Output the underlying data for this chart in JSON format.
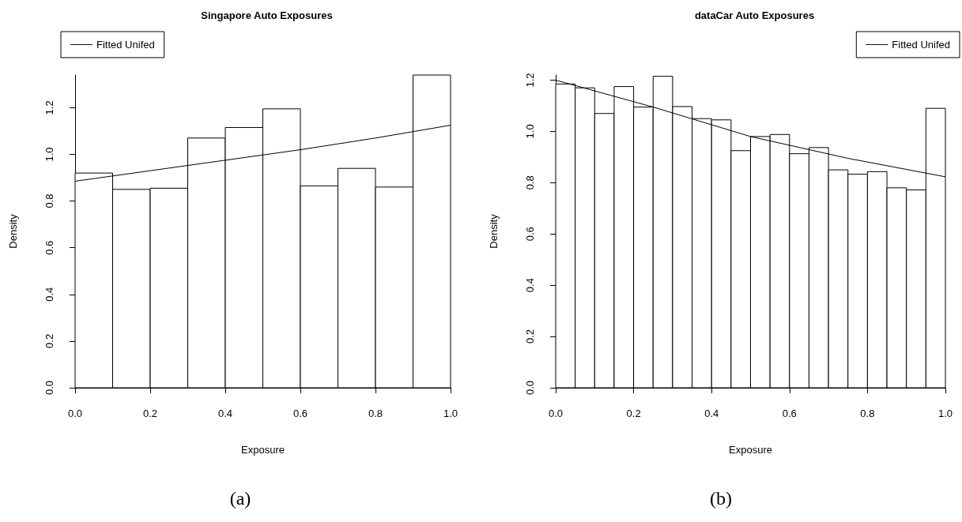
{
  "chart_data": [
    {
      "type": "histogram",
      "title": "Singapore Auto Exposures",
      "xlabel": "Exposure",
      "ylabel": "Density",
      "bins": [
        0,
        0.1,
        0.2,
        0.3,
        0.4,
        0.5,
        0.6,
        0.7,
        0.8,
        0.9,
        1.0
      ],
      "values": [
        0.92,
        0.85,
        0.855,
        1.07,
        1.115,
        1.195,
        0.865,
        0.94,
        0.86,
        1.34
      ],
      "color": "#ffffff",
      "series": [
        {
          "type": "line",
          "name": "Fitted Unifed",
          "color": "#000000",
          "x": [
            0,
            0.2,
            0.4,
            0.6,
            0.8,
            1.0
          ],
          "values": [
            0.885,
            0.93,
            0.975,
            1.02,
            1.07,
            1.125
          ]
        }
      ],
      "xlim": [
        0,
        1
      ],
      "xticks": [
        {
          "value": 0,
          "label": "0.0"
        },
        {
          "value": 0.2,
          "label": "0.2"
        },
        {
          "value": 0.4,
          "label": "0.4"
        },
        {
          "value": 0.6,
          "label": "0.6"
        },
        {
          "value": 0.8,
          "label": "0.8"
        },
        {
          "value": 1,
          "label": "1.0"
        }
      ],
      "ylim": [
        0,
        1.34
      ],
      "yticks": [
        {
          "value": 0,
          "label": "0.0"
        },
        {
          "value": 0.2,
          "label": "0.2"
        },
        {
          "value": 0.4,
          "label": "0.4"
        },
        {
          "value": 0.6,
          "label": "0.6"
        },
        {
          "value": 0.8,
          "label": "0.8"
        },
        {
          "value": 1,
          "label": "1.0"
        },
        {
          "value": 1.2,
          "label": "1.2"
        }
      ],
      "legend": "top left",
      "grid": false,
      "marker": "none",
      "line_style": "solid",
      "annotations": [
        "(a)"
      ]
    },
    {
      "type": "histogram",
      "title": "dataCar Auto Exposures",
      "xlabel": "Exposure",
      "ylabel": "Density",
      "bins": [
        0,
        0.05,
        0.1,
        0.15,
        0.2,
        0.25,
        0.3,
        0.35,
        0.4,
        0.45,
        0.5,
        0.55,
        0.6,
        0.65,
        0.7,
        0.75,
        0.8,
        0.85,
        0.9,
        0.95,
        1.0
      ],
      "values": [
        1.185,
        1.17,
        1.07,
        1.175,
        1.095,
        1.215,
        1.097,
        1.05,
        1.045,
        0.925,
        0.98,
        0.988,
        0.913,
        0.937,
        0.85,
        0.833,
        0.843,
        0.78,
        0.772,
        1.09
      ],
      "color": "#ffffff",
      "series": [
        {
          "type": "line",
          "name": "Fitted Unifed",
          "color": "#000000",
          "x": [
            0,
            0.25,
            0.5,
            0.75,
            1.0
          ],
          "values": [
            1.2,
            1.095,
            0.98,
            0.895,
            0.823
          ]
        }
      ],
      "xlim": [
        0,
        1
      ],
      "xticks": [
        {
          "value": 0,
          "label": "0.0"
        },
        {
          "value": 0.2,
          "label": "0.2"
        },
        {
          "value": 0.4,
          "label": "0.4"
        },
        {
          "value": 0.6,
          "label": "0.6"
        },
        {
          "value": 0.8,
          "label": "0.8"
        },
        {
          "value": 1,
          "label": "1.0"
        }
      ],
      "ylim": [
        0,
        1.22
      ],
      "yticks": [
        {
          "value": 0,
          "label": "0.0"
        },
        {
          "value": 0.2,
          "label": "0.2"
        },
        {
          "value": 0.4,
          "label": "0.4"
        },
        {
          "value": 0.6,
          "label": "0.6"
        },
        {
          "value": 0.8,
          "label": "0.8"
        },
        {
          "value": 1,
          "label": "1.0"
        },
        {
          "value": 1.2,
          "label": "1.2"
        }
      ],
      "legend": "top right",
      "grid": false,
      "marker": "none",
      "line_style": "solid",
      "annotations": [
        "(b)"
      ]
    }
  ]
}
